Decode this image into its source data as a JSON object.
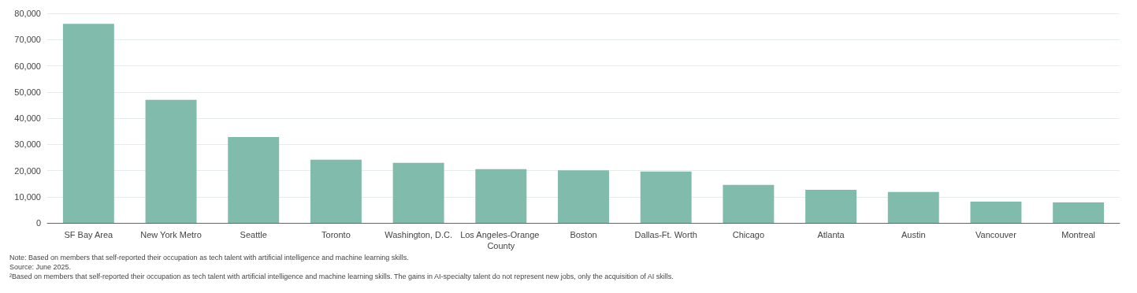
{
  "chart_data": {
    "type": "bar",
    "categories": [
      "SF Bay Area",
      "New York Metro",
      "Seattle",
      "Toronto",
      "Washington, D.C.",
      "Los Angeles-Orange County",
      "Boston",
      "Dallas-Ft. Worth",
      "Chicago",
      "Atlanta",
      "Austin",
      "Vancouver",
      "Montreal"
    ],
    "values": [
      76000,
      47000,
      32800,
      24100,
      22900,
      20500,
      20100,
      19600,
      14500,
      12600,
      11800,
      8100,
      7800
    ],
    "color": "#80bbab",
    "ylim": [
      0,
      80000
    ],
    "yticks": [
      0,
      {
        "value": 10000,
        "label": "10,000"
      },
      {
        "value": 20000,
        "label": "20,000"
      },
      {
        "value": 30000,
        "label": "30,000"
      },
      {
        "value": 40000,
        "label": "40,000"
      },
      {
        "value": 50000,
        "label": "50,000"
      },
      {
        "value": 60000,
        "label": "60,000"
      },
      {
        "value": 70000,
        "label": "70,000"
      },
      {
        "value": 80000,
        "label": "80,000"
      }
    ],
    "grid": "y",
    "annotations": [
      "Note: Based on members that self-reported their occupation as tech talent with artificial intelligence and machine learning skills.",
      "Source: June 2025.",
      "²Based on members that self-reported their occupation as tech talent with artificial intelligence and machine learning skills. The gains in AI-specialty talent do not represent new jobs, only the acquisition of AI skills."
    ]
  }
}
